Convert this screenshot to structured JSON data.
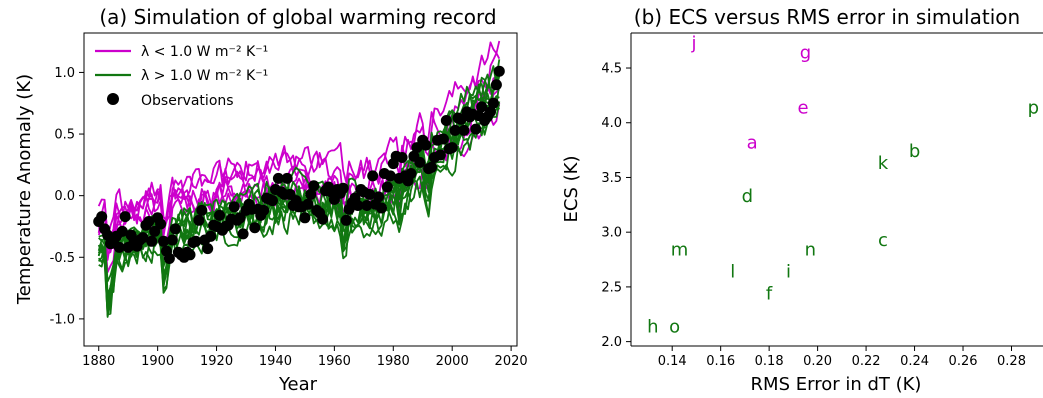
{
  "colors": {
    "weak_feedback": "#cc00cc",
    "strong_feedback": "#117711",
    "observations": "#000000"
  },
  "chart_data": [
    {
      "type": "line",
      "title": "(a) Simulation of global warming record",
      "xlabel": "Year",
      "ylabel": "Temperature Anomaly (K)",
      "xlim": [
        1875,
        2022
      ],
      "ylim": [
        -1.22,
        1.32
      ],
      "xticks": [
        "1880",
        "1900",
        "1920",
        "1940",
        "1960",
        "1980",
        "2000",
        "2020"
      ],
      "yticks": [
        "-1.0",
        "-0.5",
        "0.0",
        "0.5",
        "1.0"
      ],
      "grid": false,
      "legend_position": "top-left",
      "legend": [
        {
          "label": "λ < 1.0 W m⁻² K⁻¹",
          "kind": "line",
          "color_key": "weak_feedback"
        },
        {
          "label": "λ > 1.0 W m⁻² K⁻¹",
          "kind": "line",
          "color_key": "strong_feedback"
        },
        {
          "label": "Observations",
          "kind": "marker",
          "color_key": "observations"
        }
      ],
      "ensembles": [
        {
          "color_key": "weak_feedback",
          "members": 6,
          "trend": {
            "x": [
              1880,
              1900,
              1945,
              1975,
              2000,
              2016
            ],
            "y": [
              -0.25,
              -0.05,
              0.12,
              0.05,
              0.5,
              0.9
            ]
          }
        },
        {
          "color_key": "strong_feedback",
          "members": 10,
          "trend": {
            "x": [
              1880,
              1900,
              1945,
              1975,
              2000,
              2016
            ],
            "y": [
              -0.45,
              -0.3,
              0.0,
              -0.08,
              0.55,
              0.95
            ]
          }
        }
      ],
      "observations": {
        "x": [
          1880,
          1881,
          1882,
          1883,
          1884,
          1885,
          1886,
          1887,
          1888,
          1889,
          1890,
          1891,
          1892,
          1893,
          1894,
          1895,
          1896,
          1897,
          1898,
          1899,
          1900,
          1901,
          1902,
          1903,
          1904,
          1905,
          1906,
          1907,
          1908,
          1909,
          1910,
          1911,
          1912,
          1913,
          1914,
          1915,
          1916,
          1917,
          1918,
          1919,
          1920,
          1921,
          1922,
          1923,
          1924,
          1925,
          1926,
          1927,
          1928,
          1929,
          1930,
          1931,
          1932,
          1933,
          1934,
          1935,
          1936,
          1937,
          1938,
          1939,
          1940,
          1941,
          1942,
          1943,
          1944,
          1945,
          1946,
          1947,
          1948,
          1949,
          1950,
          1951,
          1952,
          1953,
          1954,
          1955,
          1956,
          1957,
          1958,
          1959,
          1960,
          1961,
          1962,
          1963,
          1964,
          1965,
          1966,
          1967,
          1968,
          1969,
          1970,
          1971,
          1972,
          1973,
          1974,
          1975,
          1976,
          1977,
          1978,
          1979,
          1980,
          1981,
          1982,
          1983,
          1984,
          1985,
          1986,
          1987,
          1988,
          1989,
          1990,
          1991,
          1992,
          1993,
          1994,
          1995,
          1996,
          1997,
          1998,
          1999,
          2000,
          2001,
          2002,
          2003,
          2004,
          2005,
          2006,
          2007,
          2008,
          2009,
          2010,
          2011,
          2012,
          2013,
          2014,
          2015,
          2016
        ],
        "y": [
          -0.21,
          -0.17,
          -0.27,
          -0.32,
          -0.39,
          -0.38,
          -0.33,
          -0.42,
          -0.29,
          -0.17,
          -0.42,
          -0.32,
          -0.37,
          -0.41,
          -0.36,
          -0.34,
          -0.24,
          -0.21,
          -0.37,
          -0.29,
          -0.18,
          -0.23,
          -0.37,
          -0.45,
          -0.51,
          -0.36,
          -0.27,
          -0.46,
          -0.48,
          -0.5,
          -0.46,
          -0.48,
          -0.38,
          -0.37,
          -0.2,
          -0.12,
          -0.36,
          -0.43,
          -0.33,
          -0.24,
          -0.25,
          -0.16,
          -0.28,
          -0.25,
          -0.24,
          -0.19,
          -0.09,
          -0.2,
          -0.18,
          -0.31,
          -0.12,
          -0.07,
          -0.11,
          -0.26,
          -0.11,
          -0.16,
          -0.12,
          -0.02,
          -0.03,
          -0.04,
          0.05,
          0.14,
          0.03,
          0.01,
          0.14,
          0.01,
          -0.08,
          -0.04,
          -0.09,
          -0.09,
          -0.18,
          -0.07,
          0.01,
          0.08,
          -0.12,
          -0.14,
          -0.19,
          0.04,
          0.07,
          0.03,
          -0.03,
          0.05,
          0.02,
          0.06,
          -0.2,
          -0.11,
          -0.06,
          -0.02,
          -0.08,
          0.05,
          0.03,
          -0.08,
          0.01,
          0.16,
          -0.07,
          -0.01,
          -0.1,
          0.18,
          0.07,
          0.16,
          0.26,
          0.32,
          0.14,
          0.31,
          0.16,
          0.12,
          0.18,
          0.32,
          0.39,
          0.27,
          0.45,
          0.41,
          0.22,
          0.23,
          0.31,
          0.45,
          0.33,
          0.46,
          0.61,
          0.38,
          0.39,
          0.53,
          0.63,
          0.62,
          0.53,
          0.68,
          0.64,
          0.66,
          0.54,
          0.65,
          0.72,
          0.61,
          0.64,
          0.68,
          0.75,
          0.9,
          1.01
        ]
      }
    },
    {
      "type": "scatter",
      "title": "(b) ECS versus RMS error in simulation",
      "xlabel": "RMS Error in dT  (K)",
      "ylabel": "ECS (K)",
      "xlim": [
        0.123,
        0.293
      ],
      "ylim": [
        1.96,
        4.82
      ],
      "xticks": [
        "0.14",
        "0.16",
        "0.18",
        "0.20",
        "0.22",
        "0.24",
        "0.26",
        "0.28"
      ],
      "yticks": [
        "2.0",
        "2.5",
        "3.0",
        "3.5",
        "4.0",
        "4.5"
      ],
      "grid": false,
      "points": [
        {
          "label": "j",
          "x": 0.149,
          "y": 4.73,
          "color_key": "weak_feedback"
        },
        {
          "label": "g",
          "x": 0.195,
          "y": 4.64,
          "color_key": "weak_feedback"
        },
        {
          "label": "e",
          "x": 0.194,
          "y": 4.14,
          "color_key": "weak_feedback"
        },
        {
          "label": "a",
          "x": 0.173,
          "y": 3.82,
          "color_key": "weak_feedback"
        },
        {
          "label": "p",
          "x": 0.289,
          "y": 4.14,
          "color_key": "strong_feedback"
        },
        {
          "label": "b",
          "x": 0.24,
          "y": 3.74,
          "color_key": "strong_feedback"
        },
        {
          "label": "k",
          "x": 0.227,
          "y": 3.63,
          "color_key": "strong_feedback"
        },
        {
          "label": "d",
          "x": 0.171,
          "y": 3.33,
          "color_key": "strong_feedback"
        },
        {
          "label": "c",
          "x": 0.227,
          "y": 2.93,
          "color_key": "strong_feedback"
        },
        {
          "label": "m",
          "x": 0.143,
          "y": 2.84,
          "color_key": "strong_feedback"
        },
        {
          "label": "n",
          "x": 0.197,
          "y": 2.84,
          "color_key": "strong_feedback"
        },
        {
          "label": "l",
          "x": 0.165,
          "y": 2.64,
          "color_key": "strong_feedback"
        },
        {
          "label": "i",
          "x": 0.188,
          "y": 2.64,
          "color_key": "strong_feedback"
        },
        {
          "label": "f",
          "x": 0.18,
          "y": 2.44,
          "color_key": "strong_feedback"
        },
        {
          "label": "h",
          "x": 0.132,
          "y": 2.14,
          "color_key": "strong_feedback"
        },
        {
          "label": "o",
          "x": 0.141,
          "y": 2.14,
          "color_key": "strong_feedback"
        }
      ]
    }
  ]
}
